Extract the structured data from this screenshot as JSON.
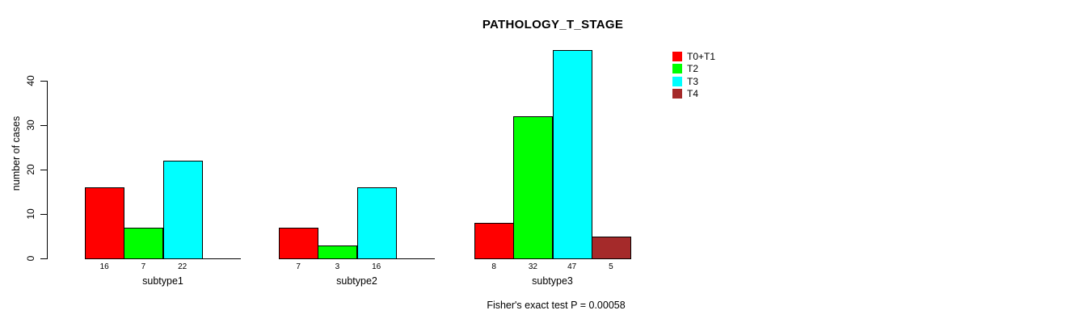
{
  "title": "PATHOLOGY_T_STAGE",
  "y_axis": {
    "label": "number of cases",
    "ticks": [
      "0",
      "10",
      "20",
      "30",
      "40"
    ]
  },
  "footer": "Fisher's exact test P = 0.00058",
  "legend": {
    "items": [
      {
        "label": "T0+T1",
        "color": "#ff0000"
      },
      {
        "label": "T2",
        "color": "#00ff00"
      },
      {
        "label": "T3",
        "color": "#00ffff"
      },
      {
        "label": "T4",
        "color": "#a52a2a"
      }
    ]
  },
  "chart_data": {
    "type": "bar",
    "title": "PATHOLOGY_T_STAGE",
    "categories": [
      "subtype1",
      "subtype2",
      "subtype3"
    ],
    "series": [
      {
        "name": "T0+T1",
        "color": "#ff0000",
        "values": [
          16,
          7,
          8
        ]
      },
      {
        "name": "T2",
        "color": "#00ff00",
        "values": [
          7,
          3,
          32
        ]
      },
      {
        "name": "T3",
        "color": "#00ffff",
        "values": [
          22,
          16,
          47
        ]
      },
      {
        "name": "T4",
        "color": "#a52a2a",
        "values": [
          0,
          0,
          5
        ]
      }
    ],
    "xlabel": "",
    "ylabel": "number of cases",
    "ylim": [
      0,
      47
    ],
    "yticks": [
      0,
      10,
      20,
      30,
      40
    ],
    "grid": false,
    "legend_position": "right",
    "bar_value_labels_shown": true,
    "zero_bars_hidden": true,
    "annotation": "Fisher's exact test P = 0.00058"
  }
}
